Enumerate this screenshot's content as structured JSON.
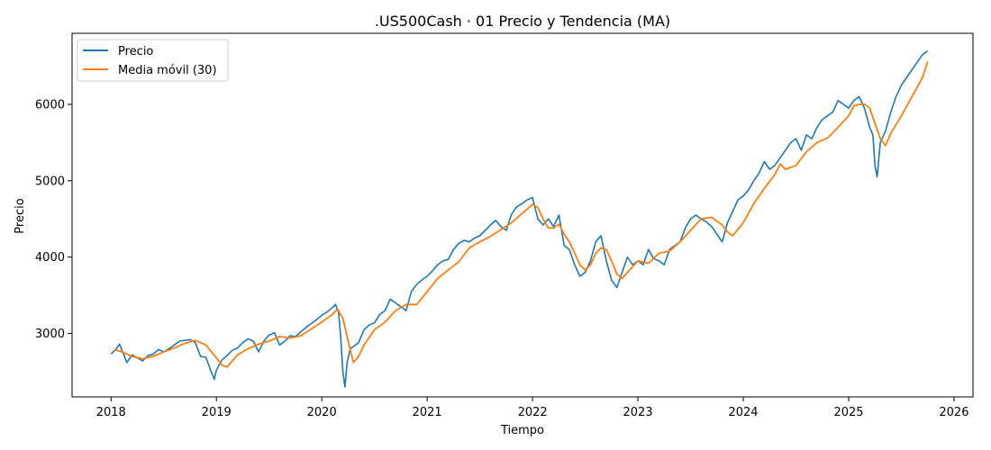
{
  "chart_data": {
    "type": "line",
    "title": ".US500Cash · 01 Precio y Tendencia (MA)",
    "xlabel": "Tiempo",
    "ylabel": "Precio",
    "x_ticks": [
      "2018",
      "2019",
      "2020",
      "2021",
      "2022",
      "2023",
      "2024",
      "2025",
      "2026"
    ],
    "y_ticks": [
      "3000",
      "4000",
      "5000",
      "6000"
    ],
    "xlim": [
      2017.63,
      2026.18
    ],
    "ylim": [
      2170,
      6930
    ],
    "grid": false,
    "legend_position": "top-left",
    "series": [
      {
        "name": "Precio",
        "color": "#1f77b4",
        "x": [
          2018.0,
          2018.05,
          2018.08,
          2018.11,
          2018.15,
          2018.2,
          2018.25,
          2018.3,
          2018.35,
          2018.4,
          2018.45,
          2018.5,
          2018.55,
          2018.6,
          2018.65,
          2018.7,
          2018.75,
          2018.8,
          2018.85,
          2018.9,
          2018.95,
          2018.98,
          2019.0,
          2019.05,
          2019.1,
          2019.15,
          2019.2,
          2019.25,
          2019.3,
          2019.35,
          2019.4,
          2019.45,
          2019.5,
          2019.55,
          2019.6,
          2019.65,
          2019.7,
          2019.75,
          2019.8,
          2019.85,
          2019.9,
          2019.95,
          2020.0,
          2020.05,
          2020.1,
          2020.13,
          2020.16,
          2020.18,
          2020.2,
          2020.22,
          2020.24,
          2020.27,
          2020.3,
          2020.35,
          2020.4,
          2020.45,
          2020.5,
          2020.55,
          2020.6,
          2020.65,
          2020.7,
          2020.75,
          2020.8,
          2020.85,
          2020.9,
          2020.95,
          2021.0,
          2021.05,
          2021.1,
          2021.15,
          2021.2,
          2021.25,
          2021.3,
          2021.35,
          2021.4,
          2021.45,
          2021.5,
          2021.55,
          2021.6,
          2021.65,
          2021.7,
          2021.75,
          2021.8,
          2021.85,
          2021.9,
          2021.95,
          2022.0,
          2022.05,
          2022.1,
          2022.15,
          2022.2,
          2022.25,
          2022.3,
          2022.35,
          2022.4,
          2022.45,
          2022.5,
          2022.55,
          2022.6,
          2022.65,
          2022.7,
          2022.75,
          2022.8,
          2022.85,
          2022.9,
          2022.95,
          2023.0,
          2023.05,
          2023.1,
          2023.15,
          2023.2,
          2023.25,
          2023.3,
          2023.35,
          2023.4,
          2023.45,
          2023.5,
          2023.55,
          2023.6,
          2023.65,
          2023.7,
          2023.75,
          2023.8,
          2023.85,
          2023.9,
          2023.95,
          2024.0,
          2024.05,
          2024.1,
          2024.15,
          2024.2,
          2024.25,
          2024.3,
          2024.35,
          2024.4,
          2024.45,
          2024.5,
          2024.55,
          2024.6,
          2024.65,
          2024.7,
          2024.75,
          2024.8,
          2024.85,
          2024.9,
          2024.95,
          2025.0,
          2025.05,
          2025.1,
          2025.15,
          2025.2,
          2025.23,
          2025.25,
          2025.27,
          2025.3,
          2025.35,
          2025.4,
          2025.45,
          2025.5,
          2025.55,
          2025.6,
          2025.65,
          2025.7,
          2025.75
        ],
        "values": [
          2730,
          2800,
          2860,
          2760,
          2620,
          2720,
          2680,
          2640,
          2710,
          2730,
          2790,
          2760,
          2800,
          2850,
          2900,
          2910,
          2920,
          2880,
          2700,
          2690,
          2500,
          2400,
          2520,
          2650,
          2710,
          2780,
          2810,
          2880,
          2930,
          2900,
          2760,
          2900,
          2980,
          3010,
          2850,
          2900,
          2970,
          2960,
          3020,
          3080,
          3130,
          3180,
          3240,
          3280,
          3340,
          3380,
          3270,
          2950,
          2500,
          2300,
          2620,
          2800,
          2830,
          2880,
          3050,
          3110,
          3140,
          3250,
          3300,
          3450,
          3400,
          3350,
          3300,
          3550,
          3640,
          3700,
          3750,
          3820,
          3900,
          3950,
          3970,
          4100,
          4180,
          4220,
          4200,
          4250,
          4280,
          4350,
          4420,
          4480,
          4400,
          4350,
          4560,
          4660,
          4700,
          4750,
          4780,
          4500,
          4420,
          4500,
          4400,
          4550,
          4150,
          4100,
          3900,
          3750,
          3800,
          3950,
          4200,
          4280,
          3950,
          3700,
          3600,
          3800,
          4000,
          3900,
          3950,
          3900,
          4100,
          3980,
          3950,
          3900,
          4100,
          4150,
          4200,
          4380,
          4500,
          4550,
          4500,
          4460,
          4400,
          4300,
          4200,
          4450,
          4600,
          4750,
          4800,
          4880,
          5000,
          5100,
          5250,
          5150,
          5200,
          5300,
          5400,
          5500,
          5550,
          5400,
          5600,
          5550,
          5700,
          5800,
          5850,
          5900,
          6050,
          6000,
          5950,
          6050,
          6100,
          5950,
          5700,
          5600,
          5200,
          5050,
          5500,
          5650,
          5900,
          6100,
          6250,
          6350,
          6450,
          6550,
          6650,
          6700
        ]
      },
      {
        "name": "Media móvil (30)",
        "color": "#ff7f0e",
        "x": [
          2018.03,
          2018.1,
          2018.2,
          2018.3,
          2018.4,
          2018.5,
          2018.6,
          2018.7,
          2018.8,
          2018.9,
          2019.0,
          2019.05,
          2019.1,
          2019.2,
          2019.3,
          2019.4,
          2019.5,
          2019.6,
          2019.7,
          2019.8,
          2019.9,
          2020.0,
          2020.1,
          2020.15,
          2020.2,
          2020.25,
          2020.3,
          2020.35,
          2020.4,
          2020.5,
          2020.6,
          2020.7,
          2020.8,
          2020.9,
          2021.0,
          2021.1,
          2021.2,
          2021.3,
          2021.4,
          2021.5,
          2021.6,
          2021.7,
          2021.8,
          2021.9,
          2022.0,
          2022.05,
          2022.1,
          2022.15,
          2022.2,
          2022.25,
          2022.3,
          2022.35,
          2022.4,
          2022.45,
          2022.5,
          2022.55,
          2022.6,
          2022.65,
          2022.7,
          2022.75,
          2022.8,
          2022.85,
          2022.9,
          2023.0,
          2023.1,
          2023.2,
          2023.3,
          2023.4,
          2023.5,
          2023.6,
          2023.7,
          2023.8,
          2023.85,
          2023.9,
          2024.0,
          2024.1,
          2024.2,
          2024.3,
          2024.35,
          2024.4,
          2024.5,
          2024.6,
          2024.7,
          2024.8,
          2024.9,
          2025.0,
          2025.05,
          2025.1,
          2025.15,
          2025.2,
          2025.25,
          2025.3,
          2025.35,
          2025.4,
          2025.5,
          2025.6,
          2025.7,
          2025.75
        ],
        "values": [
          2790,
          2760,
          2700,
          2670,
          2700,
          2760,
          2810,
          2870,
          2910,
          2850,
          2680,
          2590,
          2560,
          2720,
          2800,
          2860,
          2900,
          2960,
          2940,
          2970,
          3060,
          3150,
          3250,
          3320,
          3200,
          2900,
          2620,
          2700,
          2850,
          3050,
          3150,
          3300,
          3380,
          3380,
          3550,
          3720,
          3830,
          3940,
          4120,
          4200,
          4270,
          4360,
          4450,
          4570,
          4690,
          4650,
          4500,
          4380,
          4380,
          4430,
          4300,
          4200,
          4050,
          3900,
          3830,
          3900,
          4050,
          4120,
          4100,
          3950,
          3780,
          3720,
          3800,
          3950,
          3920,
          4050,
          4080,
          4200,
          4350,
          4500,
          4520,
          4420,
          4330,
          4280,
          4450,
          4700,
          4900,
          5080,
          5220,
          5150,
          5200,
          5380,
          5500,
          5560,
          5700,
          5850,
          5980,
          6000,
          6000,
          5950,
          5750,
          5550,
          5460,
          5620,
          5850,
          6100,
          6350,
          6560
        ]
      }
    ]
  }
}
